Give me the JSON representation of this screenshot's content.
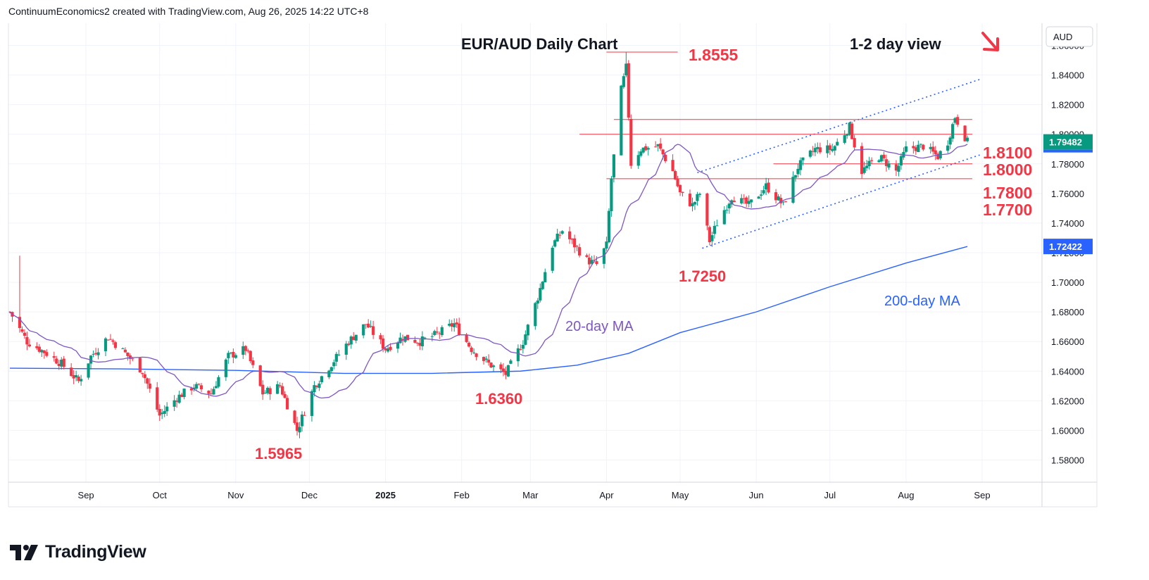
{
  "header": {
    "text": "ContinuumEconomics2 created with TradingView.com, Aug 26, 2025 14:22 UTC+8"
  },
  "brand": {
    "name": "TradingView",
    "icon": "tradingview-logo"
  },
  "colors": {
    "up": "#089981",
    "down": "#f23645",
    "ma20": "#7e57c2",
    "ma200": "#2962ff",
    "level": "#f23645",
    "channel": "#2962ff",
    "annotation": "#f23645"
  },
  "chart_data": {
    "type": "candlestick",
    "title": "EUR/AUD Daily Chart",
    "note": "1-2 day view",
    "currency": "AUD",
    "x_months": [
      "Sep",
      "Oct",
      "Nov",
      "Dec",
      "2025",
      "Feb",
      "Mar",
      "Apr",
      "May",
      "Jun",
      "Jul",
      "Aug",
      "Sep"
    ],
    "y_ticks": [
      "1.86000",
      "1.84000",
      "1.82000",
      "1.80000",
      "1.78000",
      "1.76000",
      "1.74000",
      "1.72000",
      "1.70000",
      "1.68000",
      "1.66000",
      "1.64000",
      "1.62000",
      "1.60000",
      "1.58000"
    ],
    "y_range": [
      1.565,
      1.875
    ],
    "last_price": "1.79482",
    "ma200_last": "1.72422",
    "levels": [
      {
        "label": "1.8555",
        "value": 1.8555
      },
      {
        "label": "1.8100",
        "value": 1.81
      },
      {
        "label": "1.8000",
        "value": 1.8
      },
      {
        "label": "1.7800",
        "value": 1.78
      },
      {
        "label": "1.7700",
        "value": 1.77
      }
    ],
    "annotations": [
      "1.7250",
      "1.6360",
      "1.5965"
    ],
    "ma_labels": {
      "ma20": "20-day MA",
      "ma200": "200-day MA"
    },
    "trend": "down",
    "close_path": [
      [
        "2024-08-01",
        1.68
      ],
      [
        "2024-08-08",
        1.66
      ],
      [
        "2024-08-15",
        1.653
      ],
      [
        "2024-08-22",
        1.645
      ],
      [
        "2024-08-29",
        1.633
      ],
      [
        "2024-09-03",
        1.65
      ],
      [
        "2024-09-10",
        1.663
      ],
      [
        "2024-09-17",
        1.652
      ],
      [
        "2024-09-24",
        1.64
      ],
      [
        "2024-10-01",
        1.61
      ],
      [
        "2024-10-08",
        1.622
      ],
      [
        "2024-10-15",
        1.63
      ],
      [
        "2024-10-22",
        1.625
      ],
      [
        "2024-10-29",
        1.65
      ],
      [
        "2024-11-05",
        1.655
      ],
      [
        "2024-11-12",
        1.625
      ],
      [
        "2024-11-19",
        1.63
      ],
      [
        "2024-11-26",
        1.6
      ],
      [
        "2024-12-03",
        1.63
      ],
      [
        "2024-12-10",
        1.645
      ],
      [
        "2024-12-17",
        1.66
      ],
      [
        "2024-12-24",
        1.672
      ],
      [
        "2025-01-01",
        1.655
      ],
      [
        "2025-01-08",
        1.663
      ],
      [
        "2025-01-15",
        1.66
      ],
      [
        "2025-01-22",
        1.665
      ],
      [
        "2025-01-29",
        1.672
      ],
      [
        "2025-02-05",
        1.655
      ],
      [
        "2025-02-12",
        1.645
      ],
      [
        "2025-02-19",
        1.638
      ],
      [
        "2025-02-26",
        1.66
      ],
      [
        "2025-03-04",
        1.69
      ],
      [
        "2025-03-10",
        1.725
      ],
      [
        "2025-03-14",
        1.735
      ],
      [
        "2025-03-19",
        1.725
      ],
      [
        "2025-03-24",
        1.715
      ],
      [
        "2025-03-28",
        1.712
      ],
      [
        "2025-04-01",
        1.725
      ],
      [
        "2025-04-03",
        1.77
      ],
      [
        "2025-04-07",
        1.83
      ],
      [
        "2025-04-09",
        1.845
      ],
      [
        "2025-04-11",
        1.78
      ],
      [
        "2025-04-15",
        1.79
      ],
      [
        "2025-04-22",
        1.792
      ],
      [
        "2025-04-28",
        1.775
      ],
      [
        "2025-05-01",
        1.76
      ],
      [
        "2025-05-06",
        1.752
      ],
      [
        "2025-05-09",
        1.76
      ],
      [
        "2025-05-13",
        1.728
      ],
      [
        "2025-05-16",
        1.74
      ],
      [
        "2025-05-22",
        1.758
      ],
      [
        "2025-05-29",
        1.752
      ],
      [
        "2025-06-05",
        1.765
      ],
      [
        "2025-06-12",
        1.752
      ],
      [
        "2025-06-18",
        1.778
      ],
      [
        "2025-06-25",
        1.79
      ],
      [
        "2025-07-02",
        1.79
      ],
      [
        "2025-07-09",
        1.805
      ],
      [
        "2025-07-14",
        1.775
      ],
      [
        "2025-07-21",
        1.785
      ],
      [
        "2025-07-28",
        1.775
      ],
      [
        "2025-08-01",
        1.79
      ],
      [
        "2025-08-08",
        1.792
      ],
      [
        "2025-08-14",
        1.785
      ],
      [
        "2025-08-18",
        1.795
      ],
      [
        "2025-08-21",
        1.812
      ],
      [
        "2025-08-26",
        1.7948
      ]
    ]
  }
}
